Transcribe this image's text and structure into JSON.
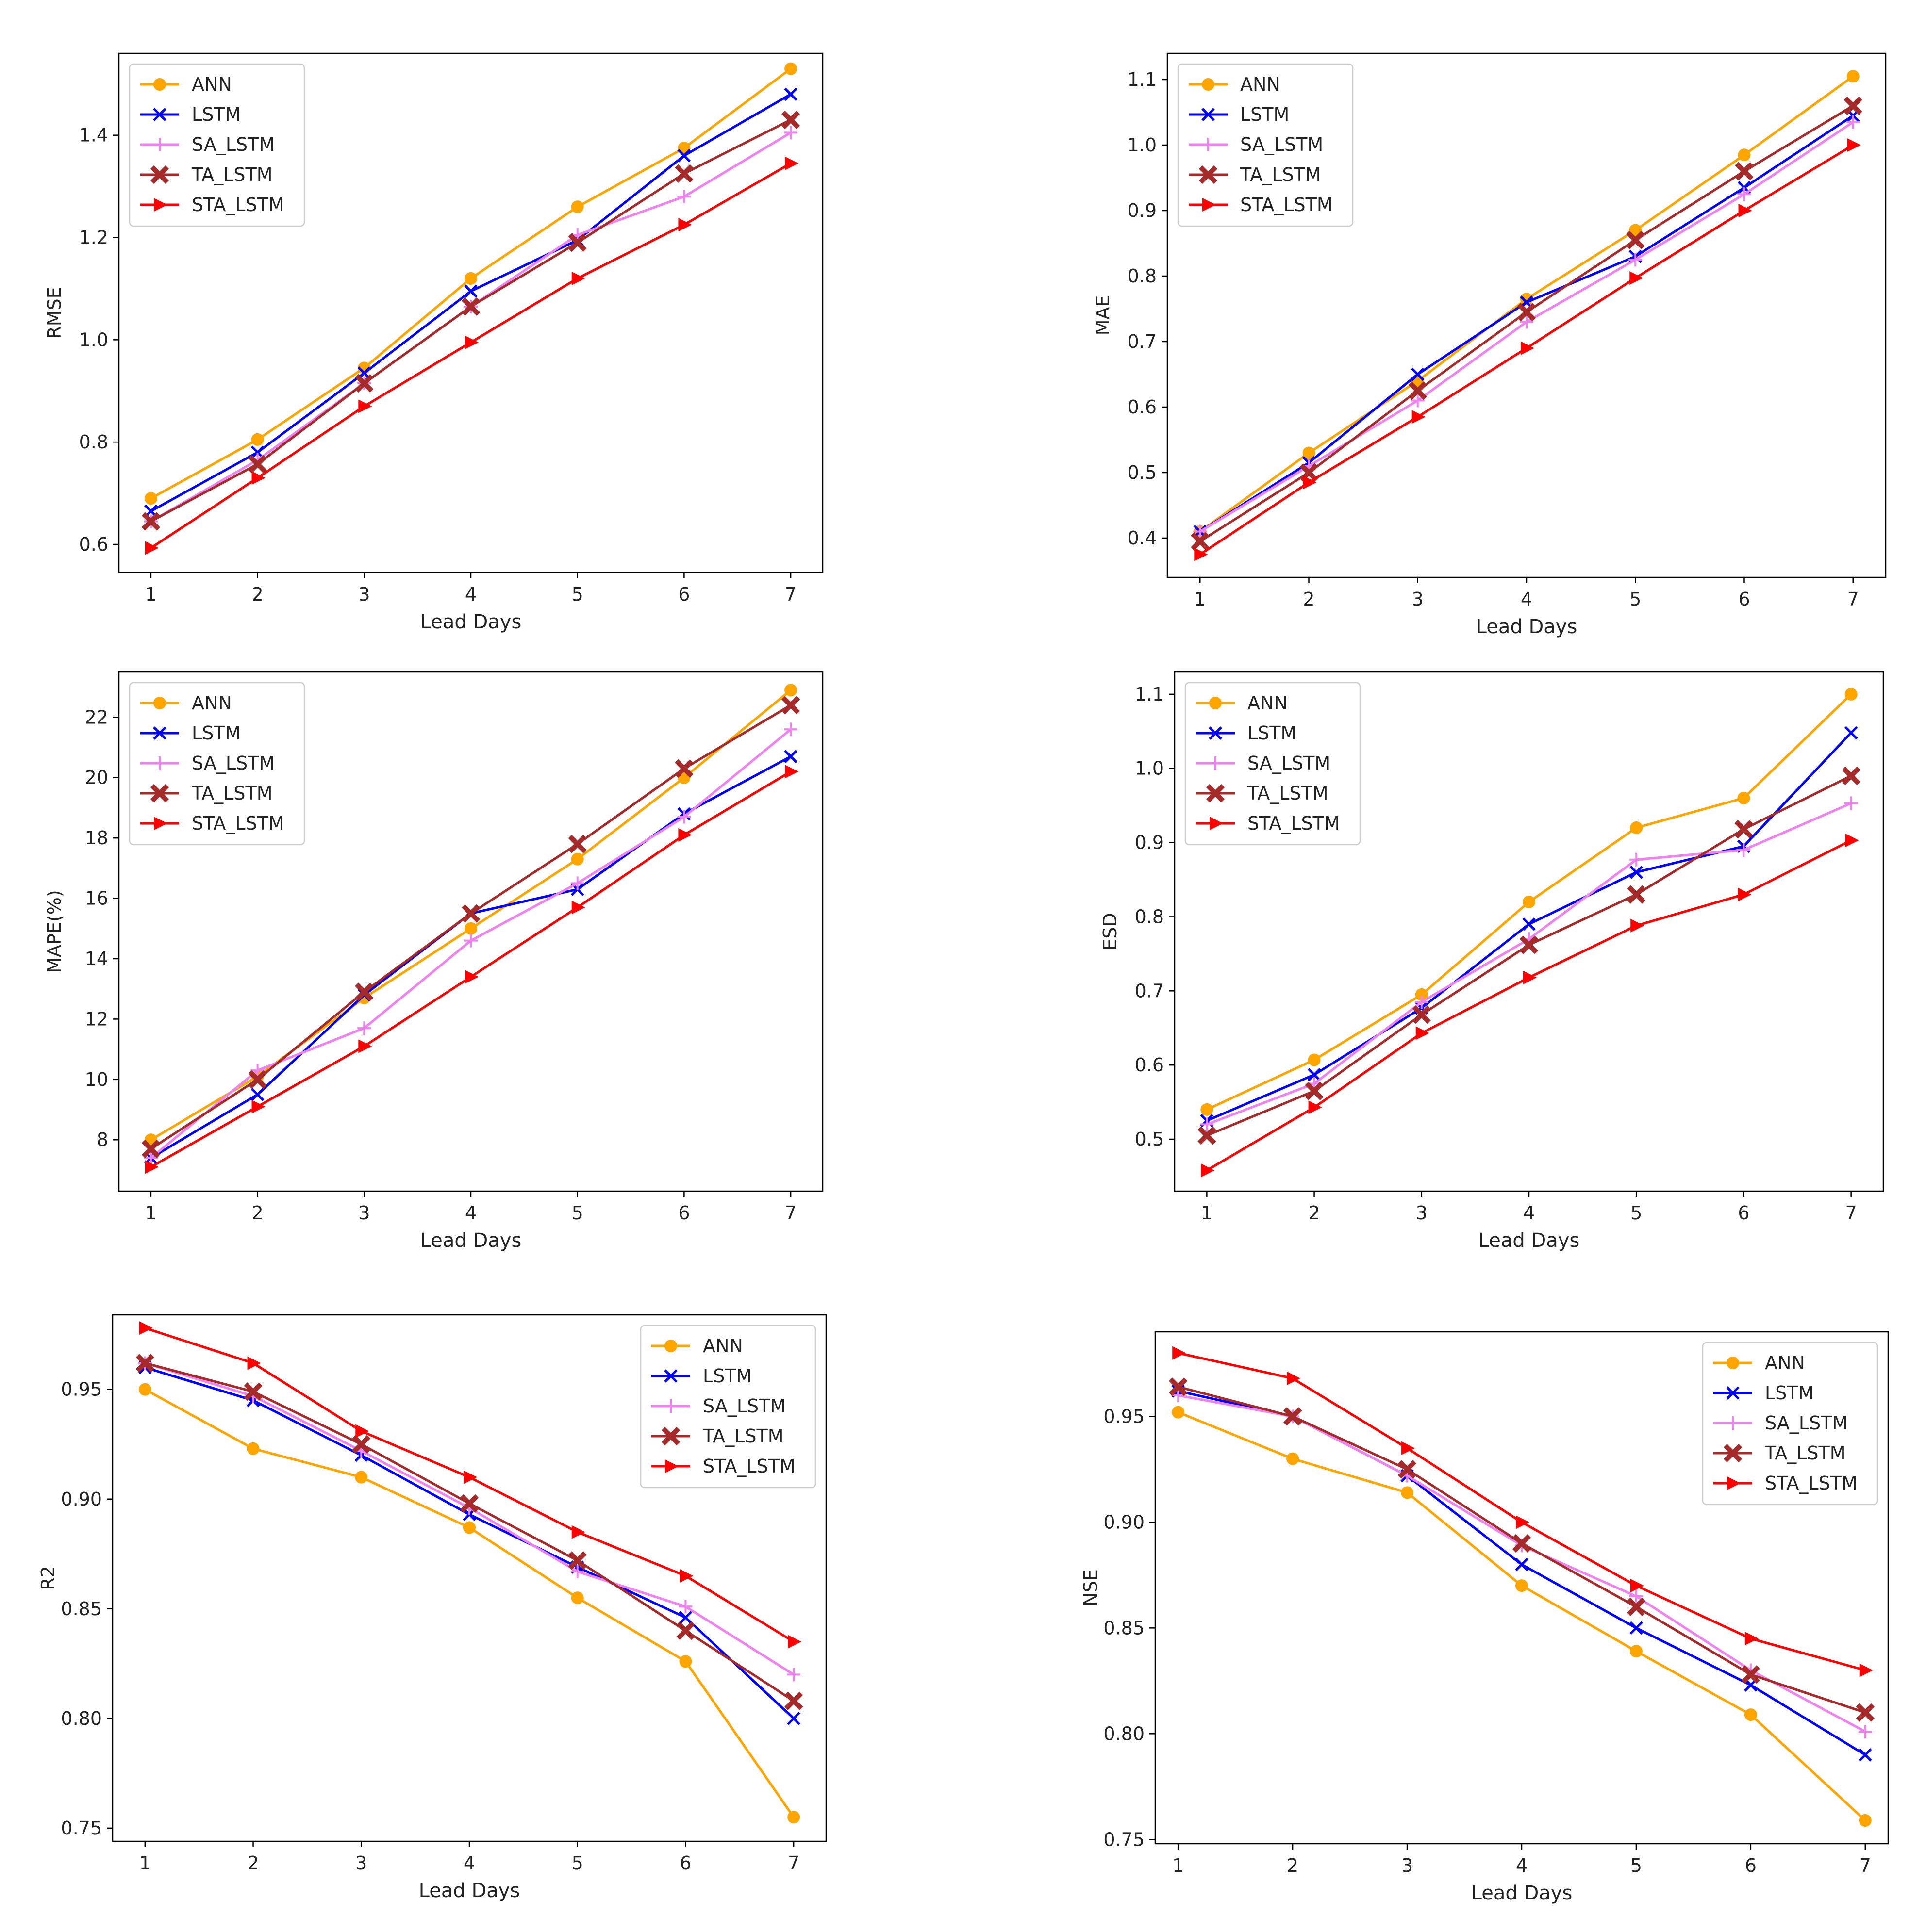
{
  "series_styles": {
    "ANN": {
      "color": "#FFA500",
      "marker": "circle"
    },
    "LSTM": {
      "color": "#0000FF",
      "marker": "x"
    },
    "SA_LSTM": {
      "color": "#EE82EE",
      "marker": "plus"
    },
    "TA_LSTM": {
      "color": "#A52A2A",
      "marker": "xfilled"
    },
    "STA_LSTM": {
      "color": "#FF0000",
      "marker": "triangle"
    }
  },
  "chart_data": [
    {
      "type": "line",
      "title": "",
      "xlabel": "Lead Days",
      "ylabel": "RMSE",
      "x": [
        1,
        2,
        3,
        4,
        5,
        6,
        7
      ],
      "xlim": [
        0.7,
        7.3
      ],
      "ylim": [
        0.545,
        1.56
      ],
      "yticks": [
        0.6,
        0.8,
        1.0,
        1.2,
        1.4
      ],
      "ytick_labels": [
        "0.6",
        "0.8",
        "1.0",
        "1.2",
        "1.4"
      ],
      "legend_position": "upper-left",
      "series": [
        {
          "name": "ANN",
          "values": [
            0.69,
            0.805,
            0.945,
            1.12,
            1.26,
            1.375,
            1.53
          ]
        },
        {
          "name": "LSTM",
          "values": [
            0.665,
            0.78,
            0.935,
            1.095,
            1.195,
            1.36,
            1.48
          ]
        },
        {
          "name": "SA_LSTM",
          "values": [
            0.645,
            0.765,
            0.915,
            1.065,
            1.205,
            1.28,
            1.405
          ]
        },
        {
          "name": "TA_LSTM",
          "values": [
            0.645,
            0.757,
            0.915,
            1.065,
            1.19,
            1.325,
            1.43
          ]
        },
        {
          "name": "STA_LSTM",
          "values": [
            0.593,
            0.73,
            0.87,
            0.995,
            1.12,
            1.225,
            1.345
          ]
        }
      ]
    },
    {
      "type": "line",
      "title": "",
      "xlabel": "Lead Days",
      "ylabel": "MAE",
      "x": [
        1,
        2,
        3,
        4,
        5,
        6,
        7
      ],
      "xlim": [
        0.7,
        7.3
      ],
      "ylim": [
        0.34,
        1.14
      ],
      "yticks": [
        0.4,
        0.5,
        0.6,
        0.7,
        0.8,
        0.9,
        1.0,
        1.1
      ],
      "ytick_labels": [
        "0.4",
        "0.5",
        "0.6",
        "0.7",
        "0.8",
        "0.9",
        "1.0",
        "1.1"
      ],
      "legend_position": "upper-left",
      "series": [
        {
          "name": "ANN",
          "values": [
            0.41,
            0.53,
            0.64,
            0.765,
            0.87,
            0.985,
            1.105
          ]
        },
        {
          "name": "LSTM",
          "values": [
            0.41,
            0.515,
            0.65,
            0.76,
            0.83,
            0.935,
            1.045
          ]
        },
        {
          "name": "SA_LSTM",
          "values": [
            0.41,
            0.51,
            0.61,
            0.73,
            0.825,
            0.925,
            1.035
          ]
        },
        {
          "name": "TA_LSTM",
          "values": [
            0.395,
            0.5,
            0.625,
            0.745,
            0.855,
            0.96,
            1.06
          ]
        },
        {
          "name": "STA_LSTM",
          "values": [
            0.375,
            0.485,
            0.585,
            0.69,
            0.797,
            0.9,
            1.0
          ]
        }
      ]
    },
    {
      "type": "line",
      "title": "",
      "xlabel": "Lead Days",
      "ylabel": "MAPE(%)",
      "x": [
        1,
        2,
        3,
        4,
        5,
        6,
        7
      ],
      "xlim": [
        0.7,
        7.3
      ],
      "ylim": [
        6.3,
        23.5
      ],
      "yticks": [
        8,
        10,
        12,
        14,
        16,
        18,
        20,
        22
      ],
      "ytick_labels": [
        "8",
        "10",
        "12",
        "14",
        "16",
        "18",
        "20",
        "22"
      ],
      "legend_position": "upper-left",
      "series": [
        {
          "name": "ANN",
          "values": [
            8.0,
            10.1,
            12.7,
            15.0,
            17.3,
            20.0,
            22.9
          ]
        },
        {
          "name": "LSTM",
          "values": [
            7.4,
            9.5,
            12.8,
            15.5,
            16.3,
            18.8,
            20.7
          ]
        },
        {
          "name": "SA_LSTM",
          "values": [
            7.4,
            10.3,
            11.7,
            14.6,
            16.5,
            18.7,
            21.6
          ]
        },
        {
          "name": "TA_LSTM",
          "values": [
            7.7,
            10.0,
            12.9,
            15.5,
            17.8,
            20.3,
            22.4
          ]
        },
        {
          "name": "STA_LSTM",
          "values": [
            7.1,
            9.1,
            11.1,
            13.4,
            15.7,
            18.1,
            20.2
          ]
        }
      ]
    },
    {
      "type": "line",
      "title": "",
      "xlabel": "Lead Days",
      "ylabel": "ESD",
      "x": [
        1,
        2,
        3,
        4,
        5,
        6,
        7
      ],
      "xlim": [
        0.7,
        7.3
      ],
      "ylim": [
        0.43,
        1.13
      ],
      "yticks": [
        0.5,
        0.6,
        0.7,
        0.8,
        0.9,
        1.0,
        1.1
      ],
      "ytick_labels": [
        "0.5",
        "0.6",
        "0.7",
        "0.8",
        "0.9",
        "1.0",
        "1.1"
      ],
      "legend_position": "upper-left",
      "series": [
        {
          "name": "ANN",
          "values": [
            0.54,
            0.607,
            0.695,
            0.82,
            0.92,
            0.96,
            1.1
          ]
        },
        {
          "name": "LSTM",
          "values": [
            0.525,
            0.587,
            0.677,
            0.79,
            0.86,
            0.895,
            1.048
          ]
        },
        {
          "name": "SA_LSTM",
          "values": [
            0.52,
            0.575,
            0.685,
            0.77,
            0.877,
            0.89,
            0.953
          ]
        },
        {
          "name": "TA_LSTM",
          "values": [
            0.505,
            0.565,
            0.668,
            0.762,
            0.83,
            0.918,
            0.99
          ]
        },
        {
          "name": "STA_LSTM",
          "values": [
            0.458,
            0.543,
            0.643,
            0.718,
            0.788,
            0.83,
            0.903
          ]
        }
      ]
    },
    {
      "type": "line",
      "title": "",
      "xlabel": "Lead Days",
      "ylabel": "R2",
      "x": [
        1,
        2,
        3,
        4,
        5,
        6,
        7
      ],
      "xlim": [
        0.7,
        7.3
      ],
      "ylim": [
        0.744,
        0.984
      ],
      "yticks": [
        0.75,
        0.8,
        0.85,
        0.9,
        0.95
      ],
      "ytick_labels": [
        "0.75",
        "0.80",
        "0.85",
        "0.90",
        "0.95"
      ],
      "legend_position": "upper-right",
      "series": [
        {
          "name": "ANN",
          "values": [
            0.95,
            0.923,
            0.91,
            0.887,
            0.855,
            0.826,
            0.755
          ]
        },
        {
          "name": "LSTM",
          "values": [
            0.96,
            0.945,
            0.92,
            0.893,
            0.869,
            0.846,
            0.8
          ]
        },
        {
          "name": "SA_LSTM",
          "values": [
            0.962,
            0.947,
            0.922,
            0.896,
            0.867,
            0.851,
            0.82
          ]
        },
        {
          "name": "TA_LSTM",
          "values": [
            0.962,
            0.949,
            0.925,
            0.898,
            0.872,
            0.84,
            0.808
          ]
        },
        {
          "name": "STA_LSTM",
          "values": [
            0.978,
            0.962,
            0.931,
            0.91,
            0.885,
            0.865,
            0.835
          ]
        }
      ]
    },
    {
      "type": "line",
      "title": "",
      "xlabel": "Lead Days",
      "ylabel": "NSE",
      "x": [
        1,
        2,
        3,
        4,
        5,
        6,
        7
      ],
      "xlim": [
        0.8,
        7.2
      ],
      "ylim": [
        0.748,
        0.99
      ],
      "yticks": [
        0.75,
        0.8,
        0.85,
        0.9,
        0.95
      ],
      "ytick_labels": [
        "0.75",
        "0.80",
        "0.85",
        "0.90",
        "0.95"
      ],
      "legend_position": "upper-right",
      "series": [
        {
          "name": "ANN",
          "values": [
            0.952,
            0.93,
            0.914,
            0.87,
            0.839,
            0.809,
            0.759
          ]
        },
        {
          "name": "LSTM",
          "values": [
            0.962,
            0.95,
            0.922,
            0.88,
            0.85,
            0.823,
            0.79
          ]
        },
        {
          "name": "SA_LSTM",
          "values": [
            0.96,
            0.95,
            0.922,
            0.889,
            0.865,
            0.83,
            0.801
          ]
        },
        {
          "name": "TA_LSTM",
          "values": [
            0.964,
            0.95,
            0.925,
            0.89,
            0.86,
            0.828,
            0.81
          ]
        },
        {
          "name": "STA_LSTM",
          "values": [
            0.98,
            0.968,
            0.935,
            0.9,
            0.87,
            0.845,
            0.83
          ]
        }
      ]
    }
  ]
}
